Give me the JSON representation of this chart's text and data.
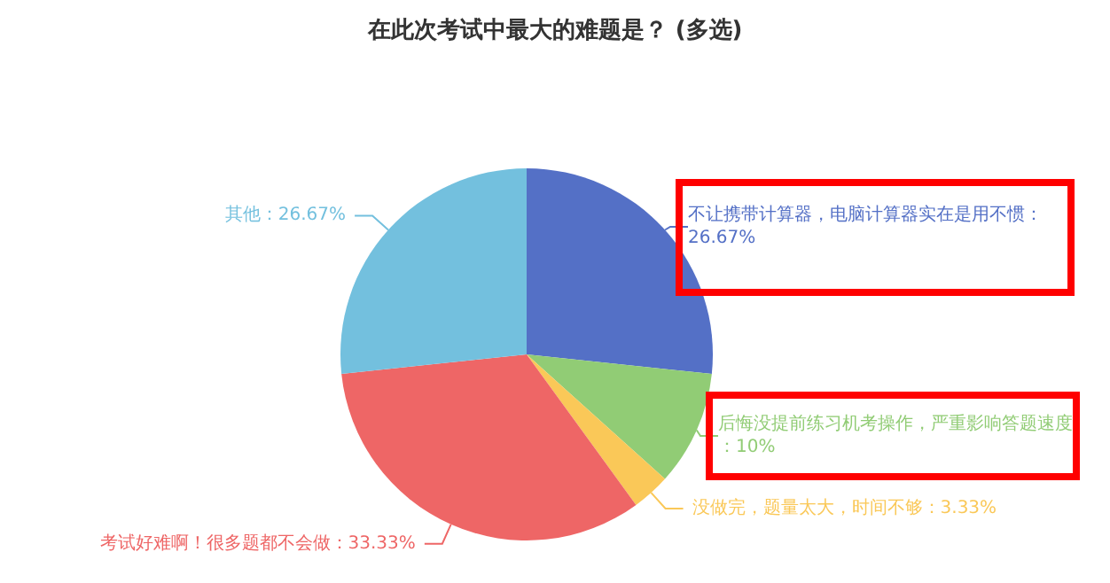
{
  "chart_data": {
    "type": "pie",
    "title": "在此次考试中最大的难题是？ (多选)",
    "categories": [
      "不让携带计算器，电脑计算器实在是用不惯",
      "后悔没提前练习机考操作，严重影响答题速度",
      "没做完，题量太大，时间不够",
      "考试好难啊！很多题都不会做",
      "其他"
    ],
    "values": [
      26.67,
      10,
      3.33,
      33.33,
      26.67
    ],
    "value_labels": [
      "：26.67%",
      "：10%",
      "：3.33%",
      "：33.33%",
      "：26.67%"
    ],
    "colors": [
      "#5470c6",
      "#91cc75",
      "#fac858",
      "#ee6666",
      "#73c0de"
    ],
    "legend": false
  }
}
